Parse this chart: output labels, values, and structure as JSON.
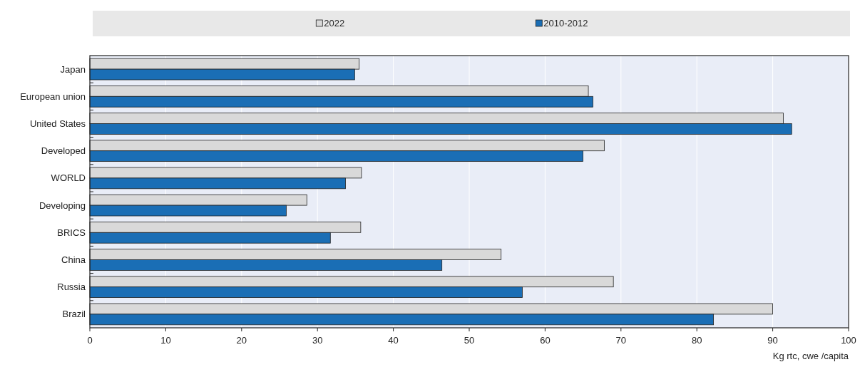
{
  "chart_data": {
    "type": "bar",
    "orientation": "horizontal",
    "categories": [
      "Japan",
      "European union",
      "United States",
      "Developed",
      "WORLD",
      "Developing",
      "BRICS",
      "China",
      "Russia",
      "Brazil"
    ],
    "series": [
      {
        "name": "2022",
        "color": "#d9d9d9",
        "values": [
          35.5,
          65.7,
          91.4,
          67.8,
          35.8,
          28.6,
          35.7,
          54.2,
          69.0,
          90.0
        ]
      },
      {
        "name": "2010-2012",
        "color": "#1a6eb5",
        "values": [
          34.9,
          66.3,
          92.5,
          65.0,
          33.7,
          25.9,
          31.7,
          46.4,
          57.0,
          82.2
        ]
      }
    ],
    "xlim": [
      0,
      100
    ],
    "xticks": [
      0,
      10,
      20,
      30,
      40,
      50,
      60,
      70,
      80,
      90,
      100
    ],
    "xlabel": "Kg rtc,  cwe /capita",
    "grid": "x",
    "legend": "top"
  }
}
